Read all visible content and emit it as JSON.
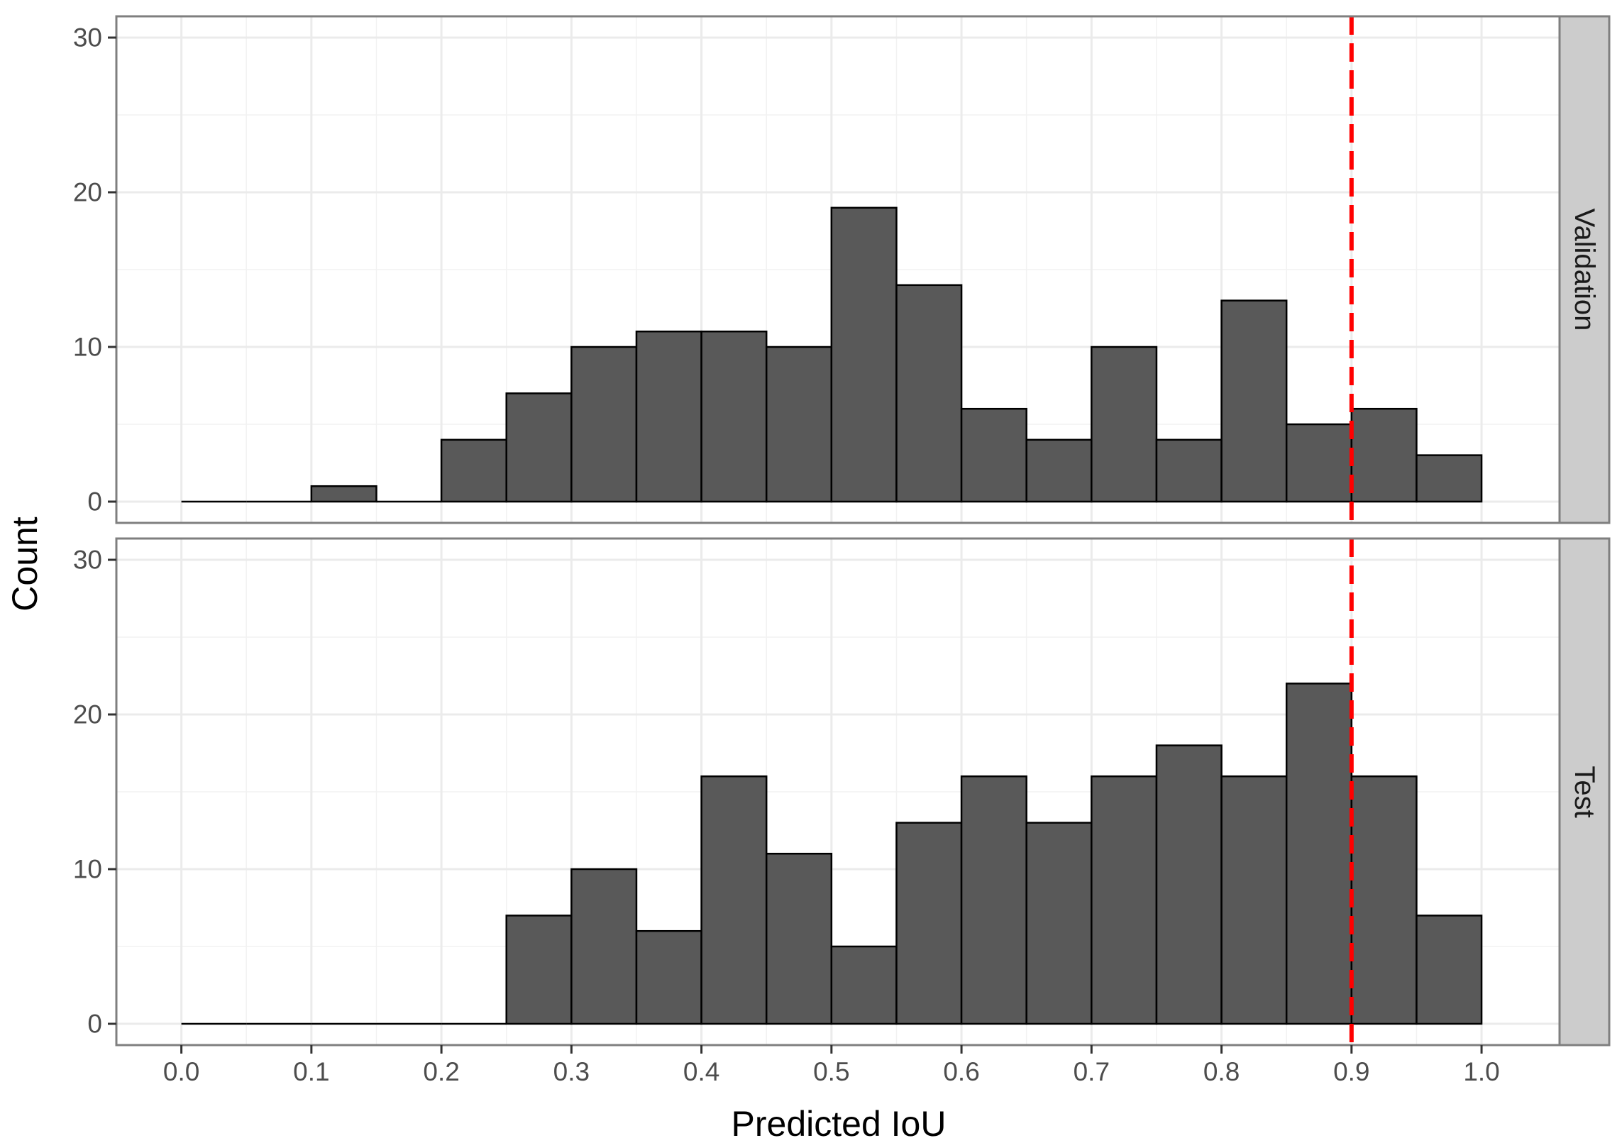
{
  "chart_data": {
    "type": "bar",
    "subtype": "faceted-histogram",
    "xlabel": "Predicted IoU",
    "ylabel": "Count",
    "xlim": [
      -0.05,
      1.06
    ],
    "ylim": [
      0,
      30
    ],
    "x_ticks": [
      "0.0",
      "0.1",
      "0.2",
      "0.3",
      "0.4",
      "0.5",
      "0.6",
      "0.7",
      "0.8",
      "0.9",
      "1.0"
    ],
    "y_ticks": [
      "0",
      "10",
      "20",
      "30"
    ],
    "bin_width": 0.05,
    "bin_starts": [
      0.0,
      0.05,
      0.1,
      0.15,
      0.2,
      0.25,
      0.3,
      0.35,
      0.4,
      0.45,
      0.5,
      0.55,
      0.6,
      0.65,
      0.7,
      0.75,
      0.8,
      0.85,
      0.9,
      0.95
    ],
    "grid": true,
    "bar_color": "#595959",
    "bar_outline": "#000000",
    "reference_line": {
      "x": 0.9,
      "style": "dashed",
      "color": "#ff0000"
    },
    "facets": [
      {
        "name": "Validation",
        "counts": [
          0,
          0,
          1,
          0,
          4,
          7,
          10,
          11,
          11,
          10,
          19,
          14,
          6,
          4,
          10,
          4,
          13,
          5,
          6,
          3
        ]
      },
      {
        "name": "Test",
        "counts": [
          0,
          0,
          0,
          0,
          0,
          7,
          10,
          6,
          16,
          11,
          5,
          13,
          16,
          13,
          16,
          18,
          16,
          22,
          16,
          7
        ]
      }
    ]
  }
}
